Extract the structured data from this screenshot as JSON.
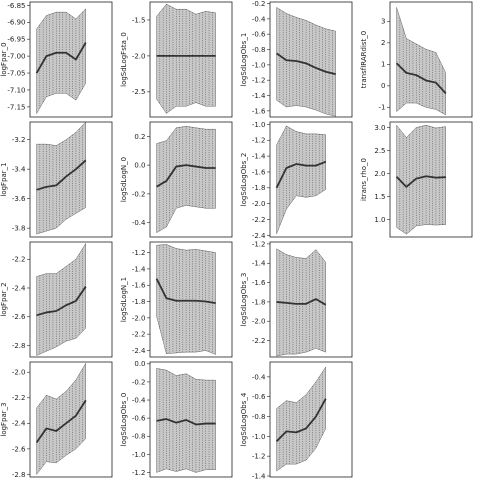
{
  "chart_data": [
    {
      "type": "area",
      "ylabel": "logFpar_0",
      "x": [
        1,
        2,
        3,
        4,
        5,
        6,
        7,
        8
      ],
      "ylim": [
        -7.18,
        -6.84
      ],
      "yticks": [
        -7.15,
        -7.1,
        -7.05,
        -7.0,
        -6.95,
        -6.9,
        -6.85
      ],
      "ytick_labels": [
        "-7.15",
        "-7.10",
        "-7.05",
        "-7.00",
        "-6.95",
        "-6.90",
        "-6.85"
      ],
      "mean": [
        -7.05,
        -7.0,
        -6.99,
        -6.99,
        -7.01,
        -6.96,
        null,
        null
      ],
      "lower": [
        -7.17,
        -7.12,
        -7.11,
        -7.11,
        -7.13,
        -7.08,
        null,
        null
      ],
      "upper": [
        -6.92,
        -6.88,
        -6.87,
        -6.87,
        -6.89,
        -6.86,
        null,
        null
      ]
    },
    {
      "type": "area",
      "ylabel": "logFpar_1",
      "x": [
        1,
        2,
        3,
        4,
        5,
        6,
        7,
        8
      ],
      "ylim": [
        -3.86,
        -3.08
      ],
      "yticks": [
        -3.8,
        -3.6,
        -3.4,
        -3.2
      ],
      "ytick_labels": [
        "-3.8",
        "-3.6",
        "-3.4",
        "-3.2"
      ],
      "mean": [
        -3.54,
        -3.52,
        -3.51,
        -3.45,
        -3.4,
        -3.34,
        null,
        null
      ],
      "lower": [
        -3.84,
        -3.82,
        -3.8,
        -3.74,
        -3.7,
        -3.66,
        null,
        null
      ],
      "upper": [
        -3.23,
        -3.23,
        -3.24,
        -3.2,
        -3.15,
        -3.08,
        null,
        null
      ]
    },
    {
      "type": "area",
      "ylabel": "logFpar_2",
      "x": [
        1,
        2,
        3,
        4,
        5,
        6,
        7,
        8
      ],
      "ylim": [
        -2.88,
        -2.08
      ],
      "yticks": [
        -2.8,
        -2.6,
        -2.4,
        -2.2
      ],
      "ytick_labels": [
        "-2.8",
        "-2.6",
        "-2.4",
        "-2.2"
      ],
      "mean": [
        -2.59,
        -2.57,
        -2.56,
        -2.52,
        -2.49,
        -2.39,
        null,
        null
      ],
      "lower": [
        -2.87,
        -2.84,
        -2.81,
        -2.77,
        -2.75,
        -2.68,
        null,
        null
      ],
      "upper": [
        -2.32,
        -2.3,
        -2.3,
        -2.25,
        -2.2,
        -2.09,
        null,
        null
      ]
    },
    {
      "type": "area",
      "ylabel": "logFpar_3",
      "x": [
        1,
        2,
        3,
        4,
        5,
        6,
        7,
        8
      ],
      "ylim": [
        -2.82,
        -1.92
      ],
      "yticks": [
        -2.8,
        -2.6,
        -2.4,
        -2.2,
        -2.0
      ],
      "ytick_labels": [
        "-2.8",
        "-2.6",
        "-2.4",
        "-2.2",
        "-2.0"
      ],
      "mean": [
        -2.55,
        -2.44,
        -2.46,
        -2.4,
        -2.34,
        -2.22,
        null,
        null
      ],
      "lower": [
        -2.8,
        -2.7,
        -2.71,
        -2.65,
        -2.6,
        -2.52,
        null,
        null
      ],
      "upper": [
        -2.28,
        -2.18,
        -2.21,
        -2.15,
        -2.06,
        -1.93,
        null,
        null
      ]
    },
    {
      "type": "area",
      "ylabel": "logSdLogFsta_0",
      "x": [
        1,
        2,
        3,
        4,
        5,
        6,
        7,
        8
      ],
      "ylim": [
        -2.85,
        -1.25
      ],
      "yticks": [
        -2.5,
        -2.0,
        -1.5
      ],
      "ytick_labels": [
        "-2.5",
        "-2.0",
        "-1.5"
      ],
      "mean": [
        -2.0,
        -2.0,
        -2.0,
        -2.0,
        -2.0,
        -2.0,
        -2.0,
        null
      ],
      "lower": [
        -2.6,
        -2.8,
        -2.7,
        -2.7,
        -2.65,
        -2.7,
        -2.7,
        null
      ],
      "upper": [
        -1.45,
        -1.28,
        -1.35,
        -1.35,
        -1.42,
        -1.38,
        -1.4,
        null
      ]
    },
    {
      "type": "area",
      "ylabel": "logSdLogN_0",
      "x": [
        1,
        2,
        3,
        4,
        5,
        6,
        7,
        8
      ],
      "ylim": [
        -0.5,
        0.3
      ],
      "yticks": [
        -0.4,
        -0.2,
        0.0,
        0.2
      ],
      "ytick_labels": [
        "-0.4",
        "-0.2",
        "0.0",
        "0.2"
      ],
      "mean": [
        -0.15,
        -0.11,
        -0.01,
        0.0,
        -0.01,
        -0.02,
        -0.02,
        null
      ],
      "lower": [
        -0.47,
        -0.43,
        -0.3,
        -0.28,
        -0.29,
        -0.3,
        -0.3,
        null
      ],
      "upper": [
        0.15,
        0.17,
        0.26,
        0.27,
        0.26,
        0.25,
        0.25,
        null
      ]
    },
    {
      "type": "area",
      "ylabel": "logSdLogN_1",
      "x": [
        1,
        2,
        3,
        4,
        5,
        6,
        7,
        8
      ],
      "ylim": [
        -2.48,
        -1.07
      ],
      "yticks": [
        -2.4,
        -2.2,
        -2.0,
        -1.8,
        -1.6,
        -1.4,
        -1.2
      ],
      "ytick_labels": [
        "-2.4",
        "-2.2",
        "-2.0",
        "-1.8",
        "-1.6",
        "-1.4",
        "-1.2"
      ],
      "mean": [
        -1.52,
        -1.76,
        -1.79,
        -1.79,
        -1.79,
        -1.8,
        -1.82,
        null
      ],
      "lower": [
        -1.98,
        -2.44,
        -2.43,
        -2.42,
        -2.42,
        -2.4,
        -2.45,
        null
      ],
      "upper": [
        -1.11,
        -1.1,
        -1.15,
        -1.17,
        -1.16,
        -1.18,
        -1.2,
        null
      ]
    },
    {
      "type": "area",
      "ylabel": "logSdLogObs_0",
      "x": [
        1,
        2,
        3,
        4,
        5,
        6,
        7,
        8
      ],
      "ylim": [
        -1.25,
        0.02
      ],
      "yticks": [
        -1.2,
        -1.0,
        -0.8,
        -0.6,
        -0.4,
        -0.2,
        0.0
      ],
      "ytick_labels": [
        "-1.2",
        "-1.0",
        "-0.8",
        "-0.6",
        "-0.4",
        "-0.2",
        "0.0"
      ],
      "mean": [
        -0.63,
        -0.61,
        -0.65,
        -0.62,
        -0.67,
        -0.66,
        -0.66,
        null
      ],
      "lower": [
        -1.2,
        -1.16,
        -1.19,
        -1.16,
        -1.2,
        -1.17,
        -1.17,
        null
      ],
      "upper": [
        -0.05,
        -0.07,
        -0.13,
        -0.11,
        -0.17,
        -0.18,
        -0.18,
        null
      ]
    },
    {
      "type": "area",
      "ylabel": "logSdLogObs_1",
      "x": [
        1,
        2,
        3,
        4,
        5,
        6,
        7,
        8
      ],
      "ylim": [
        -1.68,
        -0.18
      ],
      "yticks": [
        -1.6,
        -1.4,
        -1.2,
        -1.0,
        -0.8,
        -0.6,
        -0.4,
        -0.2
      ],
      "ytick_labels": [
        "-1.6",
        "-1.4",
        "-1.2",
        "-1.0",
        "-0.8",
        "-0.6",
        "-0.4",
        "-0.2"
      ],
      "mean": [
        -0.85,
        -0.94,
        -0.95,
        -0.98,
        -1.04,
        -1.09,
        -1.12,
        null
      ],
      "lower": [
        -1.46,
        -1.55,
        -1.53,
        -1.55,
        -1.59,
        -1.64,
        -1.67,
        null
      ],
      "upper": [
        -0.25,
        -0.33,
        -0.38,
        -0.42,
        -0.48,
        -0.53,
        -0.56,
        null
      ]
    },
    {
      "type": "area",
      "ylabel": "logSdLogObs_2",
      "x": [
        1,
        2,
        3,
        4,
        5,
        6,
        7,
        8
      ],
      "ylim": [
        -2.42,
        -0.97
      ],
      "yticks": [
        -2.4,
        -2.2,
        -2.0,
        -1.8,
        -1.6,
        -1.4,
        -1.2,
        -1.0
      ],
      "ytick_labels": [
        "-2.4",
        "-2.2",
        "-2.0",
        "-1.8",
        "-1.6",
        "-1.4",
        "-1.2",
        "-1.0"
      ],
      "mean": [
        -1.8,
        -1.55,
        -1.5,
        -1.52,
        -1.52,
        -1.47,
        null,
        null
      ],
      "lower": [
        -2.38,
        -2.07,
        -1.9,
        -1.92,
        -1.9,
        -1.82,
        null,
        null
      ],
      "upper": [
        -1.26,
        -1.02,
        -1.09,
        -1.12,
        -1.12,
        -1.13,
        null,
        null
      ]
    },
    {
      "type": "area",
      "ylabel": "logSdLogObs_3",
      "x": [
        1,
        2,
        3,
        4,
        5,
        6,
        7,
        8
      ],
      "ylim": [
        -2.37,
        -1.18
      ],
      "yticks": [
        -2.2,
        -2.0,
        -1.8,
        -1.6,
        -1.4,
        -1.2
      ],
      "ytick_labels": [
        "-2.2",
        "-2.0",
        "-1.8",
        "-1.6",
        "-1.4",
        "-1.2"
      ],
      "mean": [
        -1.8,
        -1.81,
        -1.82,
        -1.82,
        -1.77,
        -1.83,
        null,
        null
      ],
      "lower": [
        -2.36,
        -2.34,
        -2.34,
        -2.32,
        -2.28,
        -2.32,
        null,
        null
      ],
      "upper": [
        -1.25,
        -1.31,
        -1.34,
        -1.35,
        -1.26,
        -1.39,
        null,
        null
      ]
    },
    {
      "type": "area",
      "ylabel": "logSdLogObs_4",
      "x": [
        1,
        2,
        3,
        4,
        5,
        6,
        7,
        8
      ],
      "ylim": [
        -1.41,
        -0.25
      ],
      "yticks": [
        -1.4,
        -1.2,
        -1.0,
        -0.8,
        -0.6,
        -0.4
      ],
      "ytick_labels": [
        "-1.4",
        "-1.2",
        "-1.0",
        "-0.8",
        "-0.6",
        "-0.4"
      ],
      "mean": [
        -1.05,
        -0.95,
        -0.96,
        -0.92,
        -0.8,
        -0.62,
        null,
        null
      ],
      "lower": [
        -1.35,
        -1.28,
        -1.28,
        -1.24,
        -1.12,
        -0.92,
        null,
        null
      ],
      "upper": [
        -0.72,
        -0.64,
        -0.66,
        -0.58,
        -0.45,
        -0.3,
        null,
        null
      ]
    },
    {
      "type": "area",
      "ylabel": "transfIRARdist_0",
      "x": [
        1,
        2,
        3,
        4,
        5,
        6,
        7,
        8
      ],
      "ylim": [
        -1.45,
        3.9
      ],
      "yticks": [
        -1,
        0,
        1,
        2,
        3
      ],
      "ytick_labels": [
        "-1",
        "0",
        "1",
        "2",
        "3"
      ],
      "mean": [
        1.05,
        0.6,
        0.5,
        0.25,
        0.15,
        -0.35,
        null,
        null
      ],
      "lower": [
        -1.2,
        -0.8,
        -0.8,
        -1.0,
        -1.1,
        -1.35,
        null,
        null
      ],
      "upper": [
        3.65,
        2.2,
        1.95,
        1.7,
        1.55,
        0.6,
        null,
        null
      ]
    },
    {
      "type": "area",
      "ylabel": "itrans_rho_0",
      "x": [
        1,
        2,
        3,
        4,
        5,
        6,
        7,
        8
      ],
      "ylim": [
        0.62,
        3.12
      ],
      "yticks": [
        1.0,
        1.5,
        2.0,
        2.5,
        3.0
      ],
      "ytick_labels": [
        "1.0",
        "1.5",
        "2.0",
        "2.5",
        "3.0"
      ],
      "mean": [
        1.93,
        1.71,
        1.89,
        1.94,
        1.91,
        1.92,
        null,
        null
      ],
      "lower": [
        0.83,
        0.68,
        0.86,
        0.89,
        0.88,
        0.89,
        null,
        null
      ],
      "upper": [
        3.05,
        2.78,
        3.0,
        3.05,
        2.99,
        3.02,
        null,
        null
      ]
    }
  ]
}
